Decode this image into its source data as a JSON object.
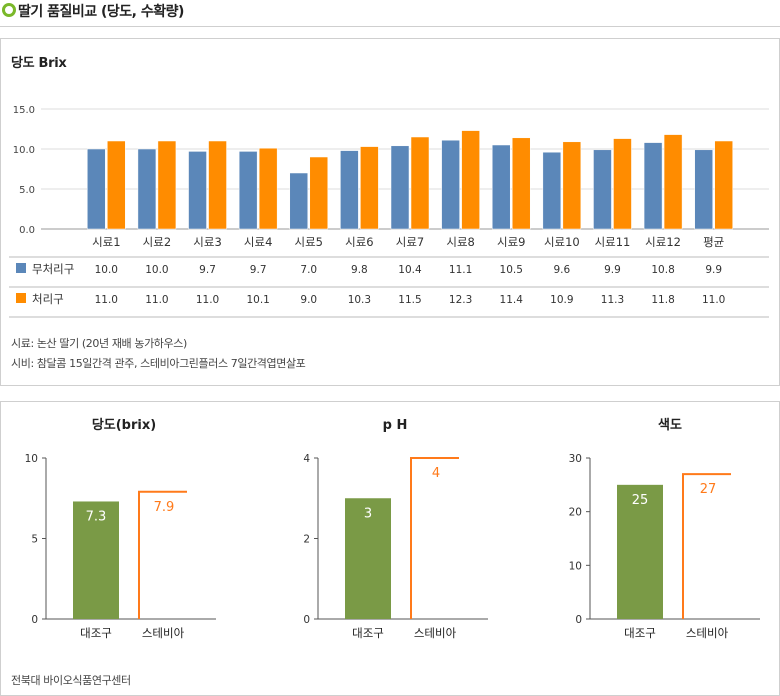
{
  "page_title": "딸기 품질비교 (당도, 수확량)",
  "chart_data": [
    {
      "type": "bar",
      "title": "당도 Brix",
      "categories": [
        "시료1",
        "시료2",
        "시료3",
        "시료4",
        "시료5",
        "시료6",
        "시료7",
        "시료8",
        "시료9",
        "시료10",
        "시료11",
        "시료12",
        "평균"
      ],
      "series": [
        {
          "name": "무처리구",
          "color": "#5b87b9",
          "values": [
            10.0,
            10.0,
            9.7,
            9.7,
            7.0,
            9.8,
            10.4,
            11.1,
            10.5,
            9.6,
            9.9,
            10.8,
            9.9
          ]
        },
        {
          "name": "처리구",
          "color": "#ff8c00",
          "values": [
            11.0,
            11.0,
            11.0,
            10.1,
            9.0,
            10.3,
            11.5,
            12.3,
            11.4,
            10.9,
            11.3,
            11.8,
            11.0
          ]
        }
      ],
      "table_labels": [
        [
          "10.0",
          "10.0",
          "9.7",
          "9.7",
          "7.0",
          "9.8",
          "10.4",
          "11.1",
          "10.5",
          "9.6",
          "9.9",
          "10.8",
          "9.9"
        ],
        [
          "11.0",
          "11.0",
          "11.0",
          "10.1",
          "9.0",
          "10.3",
          "11.5",
          "12.3",
          "11.4",
          "10.9",
          "11.3",
          "11.8",
          "11.0"
        ]
      ],
      "yticks": [
        "0.0",
        "5.0",
        "10.0",
        "15.0"
      ],
      "ylim": [
        0,
        15
      ],
      "grid": true,
      "legend": "table-below"
    },
    {
      "type": "bar",
      "title": "당도(brix)",
      "categories": [
        "대조구",
        "스테비아"
      ],
      "values": [
        7.3,
        7.9
      ],
      "value_labels": [
        "7.3",
        "7.9"
      ],
      "yticks": [
        "0",
        "5",
        "10"
      ],
      "ylim": [
        0,
        10
      ],
      "colors": [
        "#7a9a46",
        "#ff7a1a"
      ],
      "styles": [
        "filled",
        "outline"
      ]
    },
    {
      "type": "bar",
      "title": "p H",
      "categories": [
        "대조구",
        "스테비아"
      ],
      "values": [
        3,
        4
      ],
      "value_labels": [
        "3",
        "4"
      ],
      "yticks": [
        "0",
        "2",
        "4"
      ],
      "ylim": [
        0,
        4
      ],
      "colors": [
        "#7a9a46",
        "#ff7a1a"
      ],
      "styles": [
        "filled",
        "outline"
      ]
    },
    {
      "type": "bar",
      "title": "색도",
      "categories": [
        "대조구",
        "스테비아"
      ],
      "values": [
        25,
        27
      ],
      "value_labels": [
        "25",
        "27"
      ],
      "yticks": [
        "0",
        "10",
        "20",
        "30"
      ],
      "ylim": [
        0,
        30
      ],
      "colors": [
        "#7a9a46",
        "#ff7a1a"
      ],
      "styles": [
        "filled",
        "outline"
      ]
    }
  ],
  "notes": {
    "line1": "시료: 논산 딸기 (20년 재배 농가하우스)",
    "line2": "시비: 참달콤 15일간격 관주, 스테비아그린플러스 7일간격엽면살포"
  },
  "source": "전북대 바이오식품연구센터"
}
